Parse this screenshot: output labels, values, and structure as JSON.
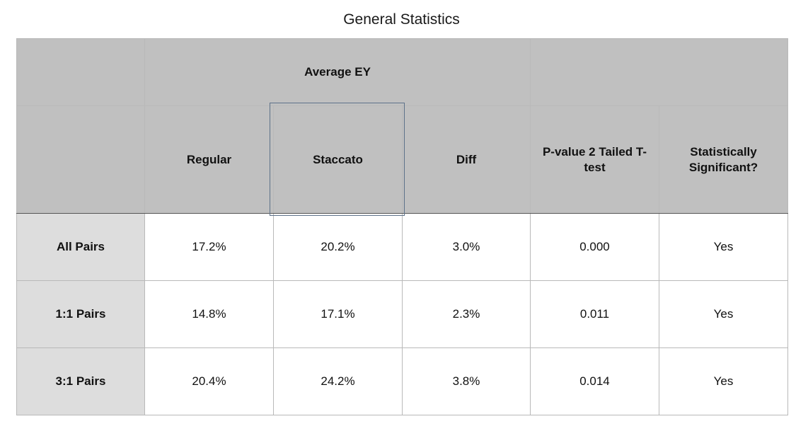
{
  "chart_data": {
    "type": "table",
    "title": "General Statistics",
    "group_header": "Average EY",
    "columns": [
      "Regular",
      "Staccato",
      "Diff",
      "P-value 2 Tailed T-test",
      "Statistically Significant?"
    ],
    "rows": [
      {
        "label": "All Pairs",
        "cells": [
          "17.2%",
          "20.2%",
          "3.0%",
          "0.000",
          "Yes"
        ]
      },
      {
        "label": "1:1 Pairs",
        "cells": [
          "14.8%",
          "17.1%",
          "2.3%",
          "0.011",
          "Yes"
        ]
      },
      {
        "label": "3:1 Pairs",
        "cells": [
          "20.4%",
          "24.2%",
          "3.8%",
          "0.014",
          "Yes"
        ]
      }
    ],
    "values": {
      "Regular": [
        17.2,
        14.8,
        20.4
      ],
      "Staccato": [
        20.2,
        17.1,
        24.2
      ],
      "Diff": [
        3.0,
        2.3,
        3.8
      ],
      "P-value 2 Tailed T-test": [
        0.0,
        0.011,
        0.014
      ]
    },
    "selected_cell": "Staccato"
  },
  "colors": {
    "header_bg": "#c0c0c0",
    "row_label_bg": "#dddddd",
    "selection_border": "#5d7189"
  }
}
